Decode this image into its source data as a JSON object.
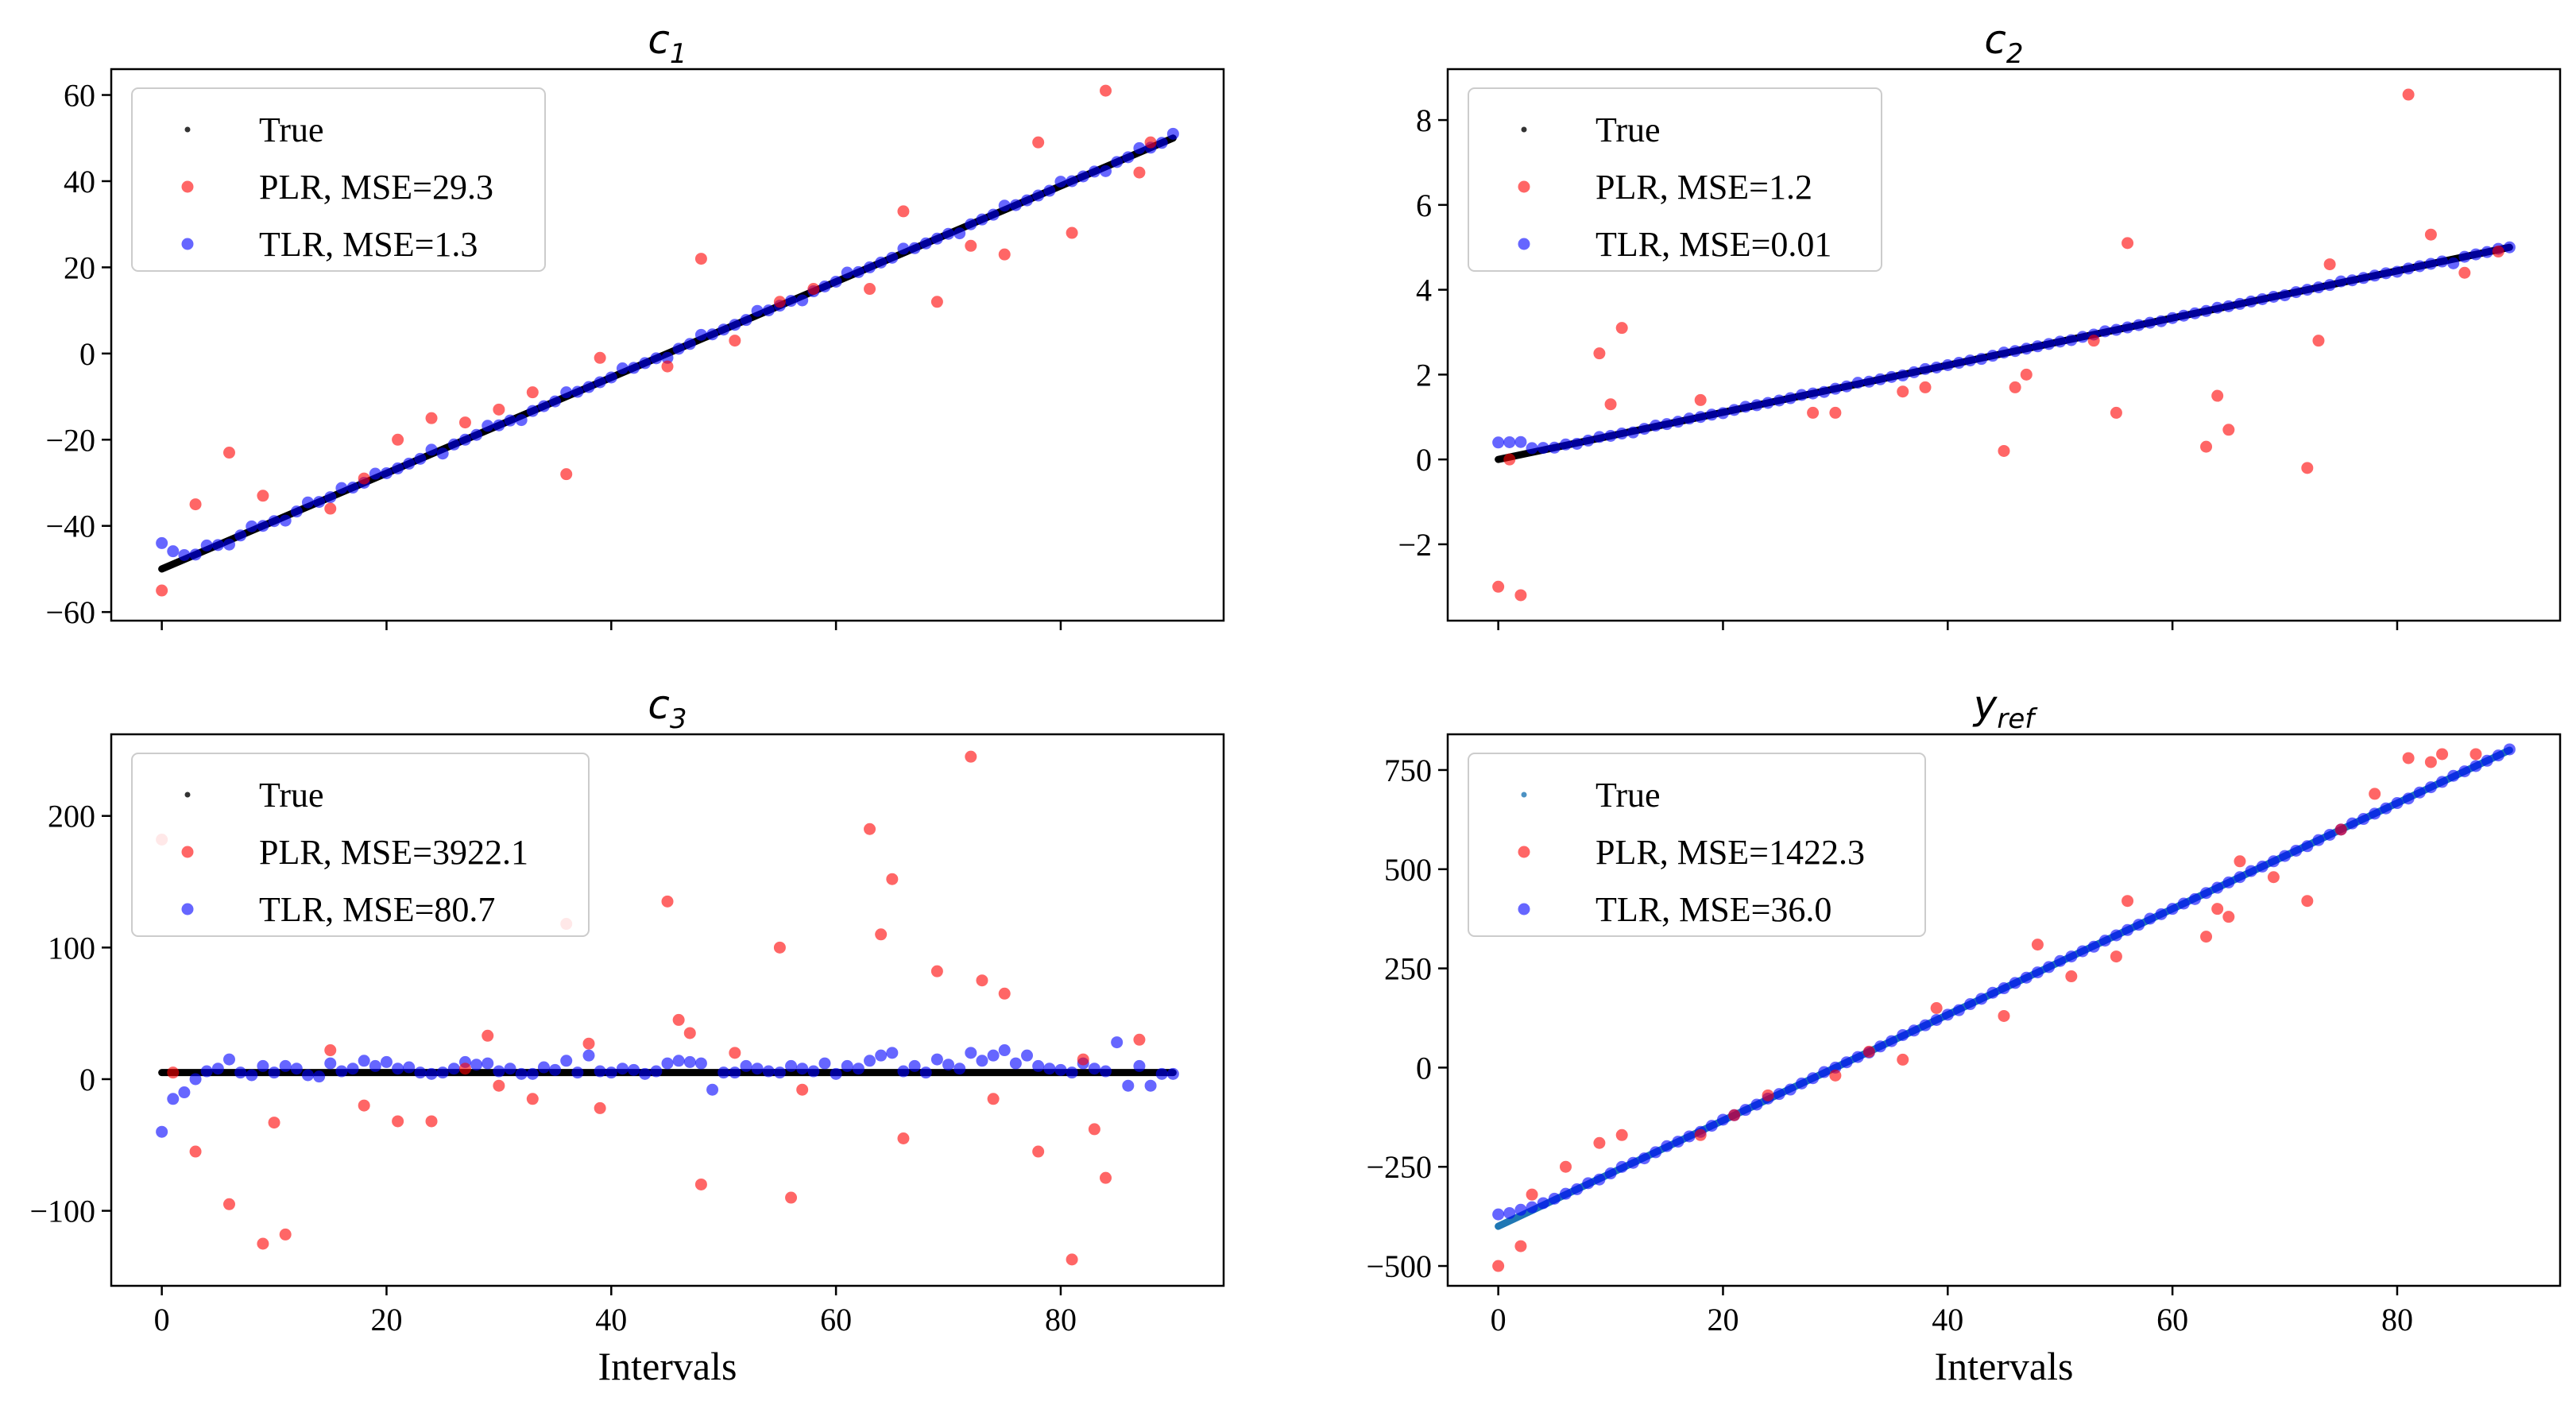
{
  "figure": {
    "xlabel": "Intervals",
    "series_colors": {
      "true_dark": "#000000",
      "true_blue": "#1f77b4",
      "plr": "#ff0000",
      "tlr": "#0000ff"
    }
  },
  "chart_data": [
    {
      "type": "scatter",
      "title": "c",
      "title_sub": "1",
      "xlabel": "",
      "ylabel": "",
      "xlim": [
        -4.5,
        94.5
      ],
      "ylim": [
        -62,
        66
      ],
      "xticks": [
        0,
        20,
        40,
        60,
        80
      ],
      "xtick_labels_visible": false,
      "yticks": [
        -60,
        -40,
        -20,
        0,
        20,
        40,
        60
      ],
      "legend_position": "upper-left",
      "legend": [
        "True",
        "PLR, MSE=29.3",
        "TLR, MSE=1.3"
      ],
      "true_line": {
        "x0": 0,
        "y0": -50,
        "x1": 90,
        "y1": 50,
        "color": "#000000"
      },
      "plr_points": [
        [
          0,
          -55
        ],
        [
          3,
          -35
        ],
        [
          6,
          -23
        ],
        [
          9,
          -33
        ],
        [
          15,
          -36
        ],
        [
          18,
          -29
        ],
        [
          21,
          -20
        ],
        [
          24,
          -15
        ],
        [
          27,
          -16
        ],
        [
          30,
          -13
        ],
        [
          33,
          -9
        ],
        [
          36,
          -28
        ],
        [
          39,
          -1
        ],
        [
          45,
          -3
        ],
        [
          48,
          22
        ],
        [
          51,
          3
        ],
        [
          55,
          12
        ],
        [
          58,
          15
        ],
        [
          63,
          15
        ],
        [
          66,
          33
        ],
        [
          69,
          12
        ],
        [
          72,
          25
        ],
        [
          75,
          23
        ],
        [
          78,
          49
        ],
        [
          81,
          28
        ],
        [
          84,
          61
        ],
        [
          87,
          42
        ],
        [
          88,
          49
        ]
      ],
      "tlr_noise": [
        6,
        3,
        1,
        0,
        1,
        0,
        -1,
        0,
        1,
        0,
        0,
        -1,
        0,
        1,
        0,
        0,
        1,
        0,
        0,
        1,
        0,
        0,
        0,
        0,
        1,
        -1,
        0,
        0,
        0,
        1,
        0,
        0,
        -1,
        0,
        0,
        0,
        1,
        0,
        0,
        0,
        0,
        1,
        0,
        0,
        0,
        -1,
        0,
        0,
        1,
        0,
        0,
        0,
        0,
        1,
        0,
        0,
        0,
        -1,
        0,
        0,
        0,
        1,
        0,
        0,
        0,
        0,
        1,
        0,
        0,
        0,
        0,
        -1,
        0,
        0,
        0,
        1,
        0,
        0,
        0,
        0,
        1,
        0,
        0,
        0,
        -1,
        0,
        0,
        1,
        0,
        0,
        1
      ]
    },
    {
      "type": "scatter",
      "title": "c",
      "title_sub": "2",
      "xlabel": "",
      "ylabel": "",
      "xlim": [
        -4.5,
        94.5
      ],
      "ylim": [
        -3.8,
        9.2
      ],
      "xticks": [
        0,
        20,
        40,
        60,
        80
      ],
      "xtick_labels_visible": false,
      "yticks": [
        -2,
        0,
        2,
        4,
        6,
        8
      ],
      "legend_position": "upper-left",
      "legend": [
        "True",
        "PLR, MSE=1.2",
        "TLR, MSE=0.01"
      ],
      "true_line": {
        "x0": 0,
        "y0": 0,
        "x1": 90,
        "y1": 5,
        "color": "#000000"
      },
      "plr_points": [
        [
          0,
          -3
        ],
        [
          1,
          0
        ],
        [
          2,
          -3.2
        ],
        [
          9,
          2.5
        ],
        [
          10,
          1.3
        ],
        [
          11,
          3.1
        ],
        [
          18,
          1.4
        ],
        [
          28,
          1.1
        ],
        [
          30,
          1.1
        ],
        [
          36,
          1.6
        ],
        [
          38,
          1.7
        ],
        [
          45,
          0.2
        ],
        [
          46,
          1.7
        ],
        [
          47,
          2
        ],
        [
          53,
          2.8
        ],
        [
          55,
          1.1
        ],
        [
          56,
          5.1
        ],
        [
          63,
          0.3
        ],
        [
          64,
          1.5
        ],
        [
          65,
          0.7
        ],
        [
          72,
          -0.2
        ],
        [
          73,
          2.8
        ],
        [
          74,
          4.6
        ],
        [
          81,
          8.6
        ],
        [
          83,
          5.3
        ],
        [
          86,
          4.4
        ],
        [
          89,
          4.9
        ]
      ],
      "tlr_noise": [
        0.4,
        0.35,
        0.3,
        0.1,
        0.05,
        0,
        0.02,
        -0.02,
        0,
        0.03,
        0,
        0,
        -0.03,
        0,
        0.02,
        0,
        0,
        0.02,
        0,
        0,
        -0.02,
        0,
        0.02,
        0,
        0,
        0,
        0,
        0.02,
        0,
        -0.02,
        0,
        0,
        0.03,
        0,
        0,
        0,
        -0.02,
        0,
        0.02,
        0,
        0,
        0,
        0,
        -0.02,
        0,
        0.02,
        0,
        0,
        0,
        0,
        0,
        -0.02,
        0,
        0,
        0.02,
        0,
        0,
        0,
        0,
        -0.02,
        0,
        0,
        0,
        0,
        0.02,
        0,
        0,
        0,
        0,
        0,
        -0.02,
        0,
        0,
        0,
        0,
        0.03,
        0,
        0,
        0,
        0,
        -0.02,
        0,
        0,
        0,
        0,
        -0.1,
        0,
        0,
        0,
        0.02,
        0
      ]
    },
    {
      "type": "scatter",
      "title": "c",
      "title_sub": "3",
      "xlabel": "Intervals",
      "ylabel": "",
      "xlim": [
        -4.5,
        94.5
      ],
      "ylim": [
        -157,
        262
      ],
      "xticks": [
        0,
        20,
        40,
        60,
        80
      ],
      "xtick_labels_visible": true,
      "yticks": [
        -100,
        0,
        100,
        200
      ],
      "legend_position": "upper-left",
      "legend": [
        "True",
        "PLR, MSE=3922.1",
        "TLR, MSE=80.7"
      ],
      "true_line": {
        "x0": 0,
        "y0": 5,
        "x1": 90,
        "y1": 5,
        "color": "#000000"
      },
      "plr_points": [
        [
          0,
          182
        ],
        [
          1,
          5
        ],
        [
          3,
          -55
        ],
        [
          6,
          -95
        ],
        [
          9,
          -125
        ],
        [
          10,
          -33
        ],
        [
          11,
          -118
        ],
        [
          15,
          22
        ],
        [
          18,
          -20
        ],
        [
          21,
          -32
        ],
        [
          24,
          -32
        ],
        [
          27,
          8
        ],
        [
          29,
          33
        ],
        [
          30,
          -5
        ],
        [
          33,
          -15
        ],
        [
          36,
          118
        ],
        [
          38,
          27
        ],
        [
          39,
          -22
        ],
        [
          45,
          135
        ],
        [
          46,
          45
        ],
        [
          47,
          35
        ],
        [
          48,
          -80
        ],
        [
          51,
          20
        ],
        [
          55,
          100
        ],
        [
          56,
          -90
        ],
        [
          57,
          -8
        ],
        [
          63,
          190
        ],
        [
          64,
          110
        ],
        [
          65,
          152
        ],
        [
          66,
          -45
        ],
        [
          69,
          82
        ],
        [
          72,
          245
        ],
        [
          73,
          75
        ],
        [
          74,
          -15
        ],
        [
          75,
          65
        ],
        [
          78,
          -55
        ],
        [
          81,
          -137
        ],
        [
          82,
          15
        ],
        [
          83,
          -38
        ],
        [
          84,
          -75
        ],
        [
          87,
          30
        ]
      ],
      "tlr_points": [
        [
          0,
          -40
        ],
        [
          1,
          -15
        ],
        [
          2,
          -10
        ],
        [
          3,
          0
        ],
        [
          4,
          6
        ],
        [
          5,
          8
        ],
        [
          6,
          15
        ],
        [
          7,
          5
        ],
        [
          8,
          3
        ],
        [
          9,
          10
        ],
        [
          10,
          5
        ],
        [
          11,
          10
        ],
        [
          12,
          8
        ],
        [
          13,
          3
        ],
        [
          14,
          2
        ],
        [
          15,
          12
        ],
        [
          16,
          6
        ],
        [
          17,
          8
        ],
        [
          18,
          14
        ],
        [
          19,
          10
        ],
        [
          20,
          13
        ],
        [
          21,
          8
        ],
        [
          22,
          9
        ],
        [
          23,
          5
        ],
        [
          24,
          4
        ],
        [
          25,
          5
        ],
        [
          26,
          8
        ],
        [
          27,
          13
        ],
        [
          28,
          11
        ],
        [
          29,
          12
        ],
        [
          30,
          6
        ],
        [
          31,
          8
        ],
        [
          32,
          4
        ],
        [
          33,
          4
        ],
        [
          34,
          9
        ],
        [
          35,
          7
        ],
        [
          36,
          14
        ],
        [
          37,
          5
        ],
        [
          38,
          18
        ],
        [
          39,
          6
        ],
        [
          40,
          5
        ],
        [
          41,
          8
        ],
        [
          42,
          7
        ],
        [
          43,
          4
        ],
        [
          44,
          6
        ],
        [
          45,
          12
        ],
        [
          46,
          14
        ],
        [
          47,
          13
        ],
        [
          48,
          12
        ],
        [
          49,
          -8
        ],
        [
          50,
          5
        ],
        [
          51,
          5
        ],
        [
          52,
          10
        ],
        [
          53,
          8
        ],
        [
          54,
          6
        ],
        [
          55,
          5
        ],
        [
          56,
          10
        ],
        [
          57,
          8
        ],
        [
          58,
          6
        ],
        [
          59,
          12
        ],
        [
          60,
          4
        ],
        [
          61,
          10
        ],
        [
          62,
          8
        ],
        [
          63,
          14
        ],
        [
          64,
          18
        ],
        [
          65,
          20
        ],
        [
          66,
          6
        ],
        [
          67,
          10
        ],
        [
          68,
          5
        ],
        [
          69,
          15
        ],
        [
          70,
          11
        ],
        [
          71,
          8
        ],
        [
          72,
          20
        ],
        [
          73,
          14
        ],
        [
          74,
          18
        ],
        [
          75,
          22
        ],
        [
          76,
          12
        ],
        [
          77,
          18
        ],
        [
          78,
          10
        ],
        [
          79,
          8
        ],
        [
          80,
          7
        ],
        [
          81,
          5
        ],
        [
          82,
          12
        ],
        [
          83,
          8
        ],
        [
          84,
          6
        ],
        [
          85,
          28
        ],
        [
          86,
          -5
        ],
        [
          87,
          10
        ],
        [
          88,
          -5
        ],
        [
          89,
          4
        ],
        [
          90,
          4
        ]
      ]
    },
    {
      "type": "scatter",
      "title": "y",
      "title_sub": "ref",
      "xlabel": "Intervals",
      "ylabel": "",
      "xlim": [
        -4.5,
        94.5
      ],
      "ylim": [
        -550,
        840
      ],
      "xticks": [
        0,
        20,
        40,
        60,
        80
      ],
      "xtick_labels_visible": true,
      "yticks": [
        -500,
        -250,
        0,
        250,
        500,
        750
      ],
      "legend_position": "upper-left",
      "legend": [
        "True",
        "PLR, MSE=1422.3",
        "TLR, MSE=36.0"
      ],
      "true_line": {
        "x0": 0,
        "y0": -400,
        "x1": 90,
        "y1": 800,
        "color": "#1f77b4"
      },
      "plr_points": [
        [
          0,
          -500
        ],
        [
          2,
          -450
        ],
        [
          3,
          -320
        ],
        [
          6,
          -250
        ],
        [
          9,
          -190
        ],
        [
          11,
          -170
        ],
        [
          18,
          -170
        ],
        [
          21,
          -120
        ],
        [
          24,
          -70
        ],
        [
          30,
          -20
        ],
        [
          33,
          40
        ],
        [
          36,
          20
        ],
        [
          39,
          150
        ],
        [
          45,
          130
        ],
        [
          48,
          310
        ],
        [
          51,
          230
        ],
        [
          55,
          280
        ],
        [
          56,
          420
        ],
        [
          63,
          330
        ],
        [
          64,
          400
        ],
        [
          65,
          380
        ],
        [
          66,
          520
        ],
        [
          69,
          480
        ],
        [
          72,
          420
        ],
        [
          75,
          600
        ],
        [
          78,
          690
        ],
        [
          81,
          780
        ],
        [
          83,
          770
        ],
        [
          84,
          790
        ],
        [
          87,
          790
        ]
      ],
      "tlr_noise": [
        30,
        20,
        15,
        8,
        5,
        3,
        2,
        0,
        2,
        -2,
        0,
        3,
        0,
        -2,
        0,
        2,
        0,
        0,
        -2,
        0,
        2,
        0,
        0,
        0,
        2,
        0,
        -2,
        0,
        0,
        2,
        0,
        0,
        0,
        -2,
        0,
        0,
        2,
        0,
        0,
        0,
        0,
        -2,
        0,
        0,
        2,
        0,
        0,
        0,
        0,
        0,
        2,
        0,
        0,
        -2,
        0,
        0,
        0,
        0,
        2,
        0,
        0,
        0,
        -2,
        0,
        0,
        0,
        0,
        2,
        0,
        0,
        0,
        0,
        -2,
        0,
        0,
        0,
        2,
        0,
        0,
        0,
        0,
        -2,
        0,
        0,
        0,
        2,
        0,
        0,
        0,
        0,
        2
      ]
    }
  ]
}
